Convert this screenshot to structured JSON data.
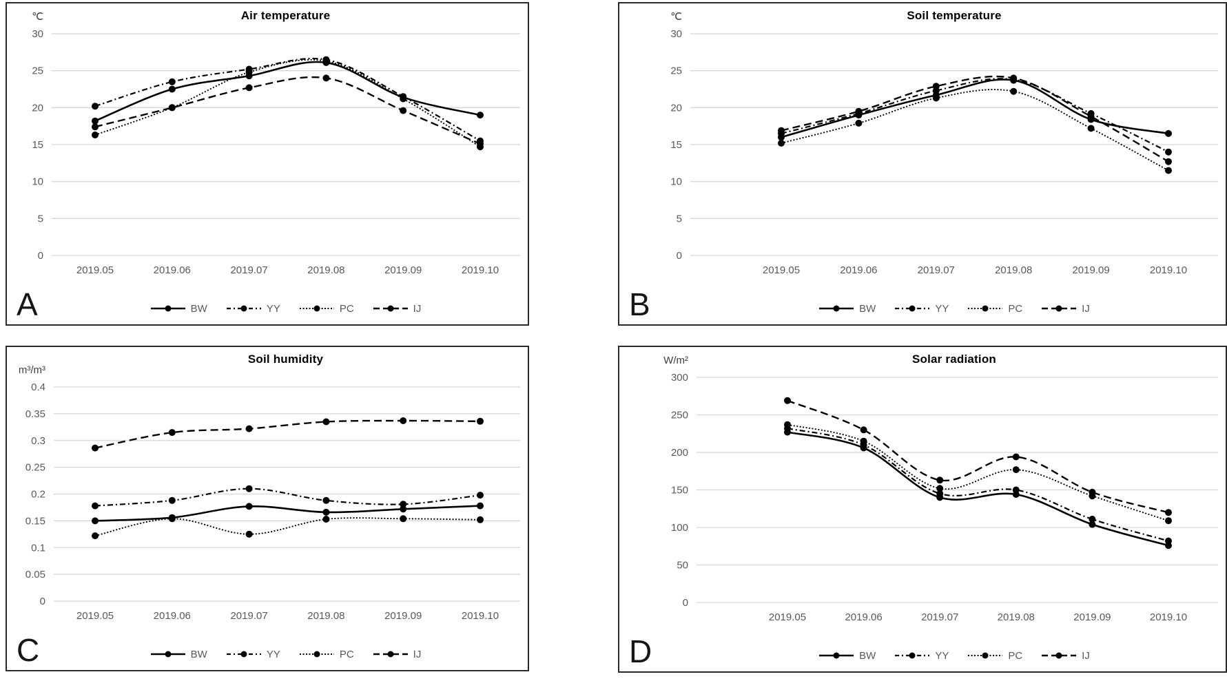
{
  "page": {
    "background": "#ffffff"
  },
  "colors": {
    "series": "#000000",
    "gridline": "#d6d6d6",
    "axis_text": "#595959",
    "title_text": "#000000",
    "panel_border": "#2a2a2a"
  },
  "legend": {
    "position": "bottom",
    "items": [
      {
        "label": "BW",
        "style": "solid"
      },
      {
        "label": "YY",
        "style": "dashdot"
      },
      {
        "label": "PC",
        "style": "dotted"
      },
      {
        "label": "IJ",
        "style": "dashed"
      }
    ]
  },
  "chart_data": [
    {
      "panel_label": "A",
      "type": "line",
      "title": "Air temperature",
      "unit": "℃",
      "ylim": [
        0,
        30
      ],
      "y_ticks": [
        30,
        25,
        20,
        15,
        10,
        5,
        0
      ],
      "grid": "horizontal",
      "legend_position": "bottom",
      "categories": [
        "2019.05",
        "2019.06",
        "2019.07",
        "2019.08",
        "2019.09",
        "2019.10"
      ],
      "series": [
        {
          "name": "BW",
          "style": "solid",
          "values": [
            18.2,
            22.5,
            24.3,
            26.1,
            21.4,
            19.0
          ]
        },
        {
          "name": "YY",
          "style": "dashdot",
          "values": [
            20.2,
            23.5,
            25.2,
            26.5,
            21.5,
            15.5
          ]
        },
        {
          "name": "PC",
          "style": "dotted",
          "values": [
            16.3,
            20.0,
            24.8,
            26.3,
            21.2,
            14.7
          ]
        },
        {
          "name": "IJ",
          "style": "dashed",
          "values": [
            17.4,
            20.0,
            22.7,
            24.0,
            19.6,
            15.1
          ]
        }
      ]
    },
    {
      "panel_label": "B",
      "type": "line",
      "title": "Soil temperature",
      "unit": "℃",
      "ylim": [
        0,
        30
      ],
      "y_ticks": [
        30,
        25,
        20,
        15,
        10,
        5,
        0
      ],
      "grid": "horizontal",
      "legend_position": "bottom",
      "categories": [
        "2019.05",
        "2019.06",
        "2019.07",
        "2019.08",
        "2019.09",
        "2019.10"
      ],
      "series": [
        {
          "name": "BW",
          "style": "solid",
          "values": [
            16.0,
            19.0,
            21.7,
            23.7,
            18.4,
            16.5
          ]
        },
        {
          "name": "YY",
          "style": "dashdot",
          "values": [
            16.5,
            19.2,
            22.3,
            23.8,
            19.2,
            14.0
          ]
        },
        {
          "name": "PC",
          "style": "dotted",
          "values": [
            15.2,
            17.9,
            21.3,
            22.2,
            17.2,
            11.5
          ]
        },
        {
          "name": "IJ",
          "style": "dashed",
          "values": [
            16.9,
            19.5,
            22.9,
            24.0,
            18.8,
            12.7
          ]
        }
      ]
    },
    {
      "panel_label": "C",
      "type": "line",
      "title": "Soil humidity",
      "unit": "m³/m³",
      "ylim": [
        0,
        0.4
      ],
      "y_ticks": [
        0.4,
        0.35,
        0.3,
        0.25,
        0.2,
        0.15,
        0.1,
        0.05,
        0
      ],
      "grid": "horizontal",
      "legend_position": "bottom",
      "categories": [
        "2019.05",
        "2019.06",
        "2019.07",
        "2019.08",
        "2019.09",
        "2019.10"
      ],
      "series": [
        {
          "name": "BW",
          "style": "solid",
          "values": [
            0.15,
            0.156,
            0.177,
            0.166,
            0.172,
            0.178
          ]
        },
        {
          "name": "YY",
          "style": "dashdot",
          "values": [
            0.178,
            0.188,
            0.21,
            0.188,
            0.181,
            0.198
          ]
        },
        {
          "name": "PC",
          "style": "dotted",
          "values": [
            0.122,
            0.154,
            0.125,
            0.153,
            0.154,
            0.152
          ]
        },
        {
          "name": "IJ",
          "style": "dashed",
          "values": [
            0.286,
            0.315,
            0.322,
            0.335,
            0.337,
            0.336
          ]
        }
      ]
    },
    {
      "panel_label": "D",
      "type": "line",
      "title": "Solar radiation",
      "unit": "W/m²",
      "ylim": [
        0,
        300
      ],
      "y_ticks": [
        300,
        250,
        200,
        150,
        100,
        50,
        0
      ],
      "grid": "horizontal",
      "legend_position": "bottom",
      "categories": [
        "2019.05",
        "2019.06",
        "2019.07",
        "2019.08",
        "2019.09",
        "2019.10"
      ],
      "series": [
        {
          "name": "BW",
          "style": "solid",
          "values": [
            227,
            206,
            140,
            144,
            104,
            76
          ]
        },
        {
          "name": "YY",
          "style": "dashdot",
          "values": [
            232,
            210,
            145,
            150,
            111,
            82
          ]
        },
        {
          "name": "PC",
          "style": "dotted",
          "values": [
            237,
            215,
            152,
            177,
            142,
            109
          ]
        },
        {
          "name": "IJ",
          "style": "dashed",
          "values": [
            269,
            230,
            163,
            194,
            147,
            120
          ]
        }
      ]
    }
  ]
}
